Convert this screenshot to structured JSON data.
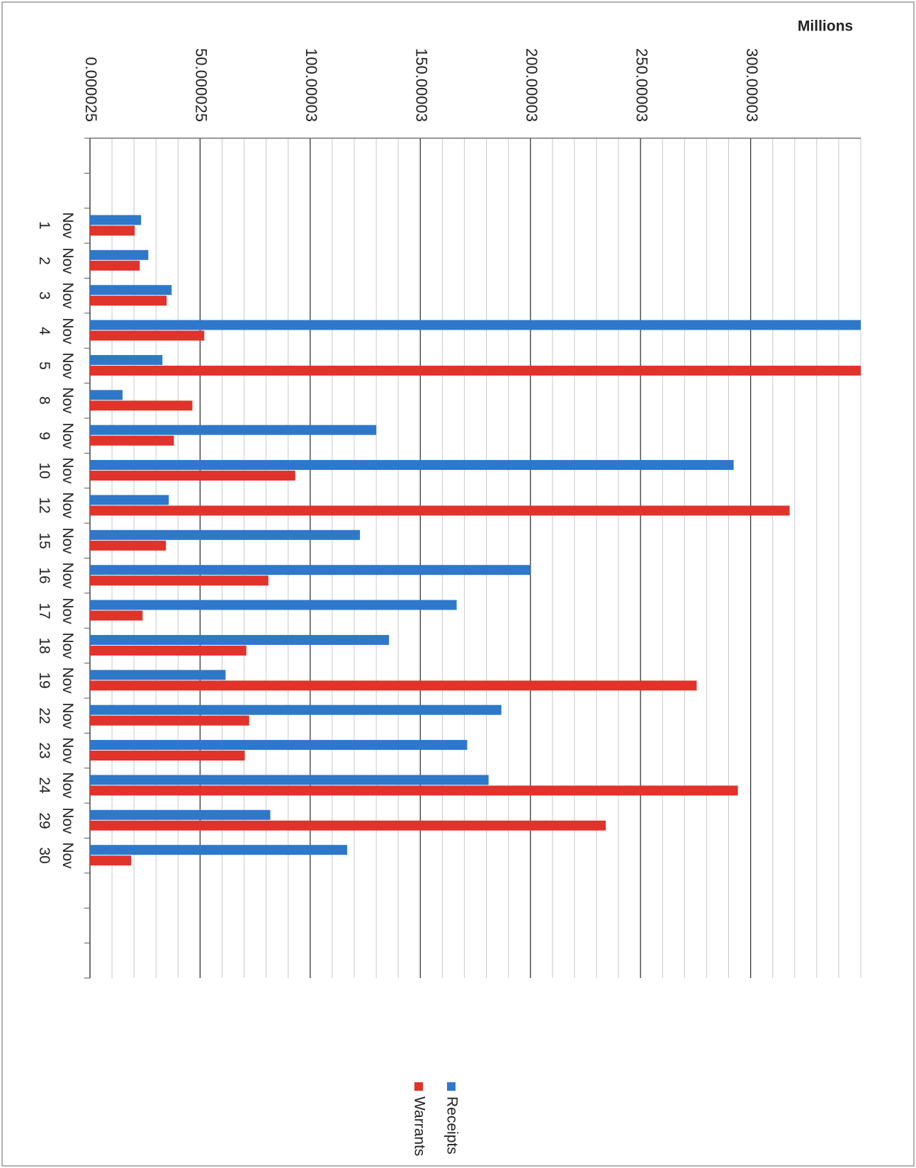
{
  "chart_data": {
    "type": "bar",
    "orientation": "horizontal",
    "unit_label": "Millions",
    "categories": [
      null,
      null,
      "Nov 1",
      "Nov 2",
      "Nov 3",
      "Nov 4",
      "Nov 5",
      "Nov 8",
      "Nov 9",
      "Nov 10",
      "Nov 12",
      "Nov 15",
      "Nov 16",
      "Nov 17",
      "Nov 18",
      "Nov 19",
      "Nov 22",
      "Nov 23",
      "Nov 24",
      "Nov 29",
      "Nov 30",
      null,
      null,
      null
    ],
    "series": [
      {
        "name": "Receipts",
        "color": "#2f78c9",
        "values": [
          null,
          null,
          23.2,
          26.5,
          37.1,
          350,
          32.9,
          14.8,
          130,
          292.3,
          35.8,
          122.6,
          200,
          166.5,
          135.8,
          61.6,
          186.8,
          171.3,
          181,
          81.9,
          116.8,
          null,
          null,
          null
        ]
      },
      {
        "name": "Warrants",
        "color": "#e0332b",
        "values": [
          null,
          null,
          20.3,
          22.6,
          34.8,
          51.9,
          350,
          46.5,
          38.1,
          93.2,
          317.7,
          34.5,
          81,
          23.9,
          71,
          275.5,
          72.3,
          70.3,
          294.2,
          234.2,
          18.7,
          null,
          null,
          null
        ]
      }
    ],
    "ylim": [
      2.5e-05,
      350.00003
    ],
    "yticks": [
      2.5e-05,
      50.000025,
      100.00003,
      150.00003,
      200.00003,
      250.00003,
      300.00003
    ],
    "grid": true
  }
}
